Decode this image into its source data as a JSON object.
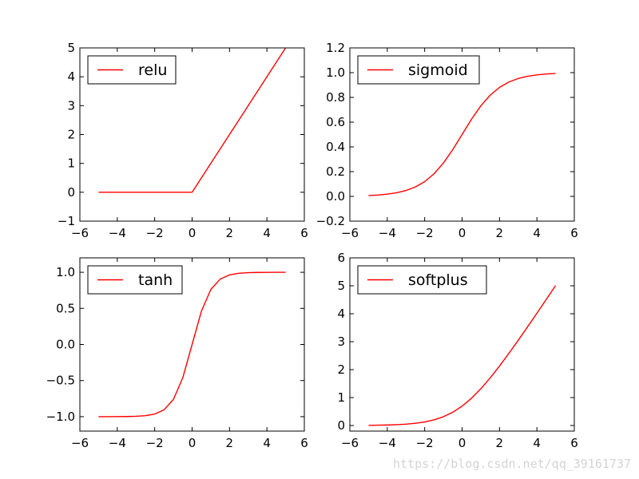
{
  "chart_data": [
    {
      "type": "line",
      "x": [
        -5,
        -4,
        -3,
        -2,
        -1,
        0,
        1,
        2,
        3,
        4,
        5
      ],
      "series": [
        {
          "name": "relu",
          "color": "#ff0000",
          "values": [
            0,
            0,
            0,
            0,
            0,
            0,
            1,
            2,
            3,
            4,
            5
          ]
        }
      ],
      "xlim": [
        -6,
        6
      ],
      "ylim": [
        -1,
        5
      ],
      "xticks": [
        -6,
        -4,
        -2,
        0,
        2,
        4,
        6
      ],
      "xtick_labels": [
        "−6",
        "−4",
        "−2",
        "0",
        "2",
        "4",
        "6"
      ],
      "yticks": [
        -1,
        0,
        1,
        2,
        3,
        4,
        5
      ],
      "ytick_labels": [
        "−1",
        "0",
        "1",
        "2",
        "3",
        "4",
        "5"
      ],
      "legend": "top-left",
      "grid": false
    },
    {
      "type": "line",
      "x": [
        -5,
        -4.5,
        -4,
        -3.5,
        -3,
        -2.5,
        -2,
        -1.5,
        -1,
        -0.5,
        0,
        0.5,
        1,
        1.5,
        2,
        2.5,
        3,
        3.5,
        4,
        4.5,
        5
      ],
      "series": [
        {
          "name": "sigmoid",
          "color": "#ff0000",
          "values": [
            0.0067,
            0.011,
            0.018,
            0.0293,
            0.0474,
            0.0759,
            0.1192,
            0.1824,
            0.2689,
            0.3775,
            0.5,
            0.6225,
            0.7311,
            0.8176,
            0.8808,
            0.9241,
            0.9526,
            0.9707,
            0.982,
            0.989,
            0.9933
          ]
        }
      ],
      "xlim": [
        -6,
        6
      ],
      "ylim": [
        -0.2,
        1.2
      ],
      "xticks": [
        -6,
        -4,
        -2,
        0,
        2,
        4,
        6
      ],
      "xtick_labels": [
        "−6",
        "−4",
        "−2",
        "0",
        "2",
        "4",
        "6"
      ],
      "yticks": [
        -0.2,
        0,
        0.2,
        0.4,
        0.6,
        0.8,
        1.0,
        1.2
      ],
      "ytick_labels": [
        "−0.2",
        "0.0",
        "0.2",
        "0.4",
        "0.6",
        "0.8",
        "1.0",
        "1.2"
      ],
      "legend": "top-left",
      "grid": false
    },
    {
      "type": "line",
      "x": [
        -5,
        -4.5,
        -4,
        -3.5,
        -3,
        -2.5,
        -2,
        -1.5,
        -1,
        -0.5,
        0,
        0.5,
        1,
        1.5,
        2,
        2.5,
        3,
        3.5,
        4,
        4.5,
        5
      ],
      "series": [
        {
          "name": "tanh",
          "color": "#ff0000",
          "values": [
            -0.9999,
            -0.9998,
            -0.9993,
            -0.9982,
            -0.9951,
            -0.9866,
            -0.964,
            -0.9051,
            -0.7616,
            -0.4621,
            0,
            0.4621,
            0.7616,
            0.9051,
            0.964,
            0.9866,
            0.9951,
            0.9982,
            0.9993,
            0.9998,
            0.9999
          ]
        }
      ],
      "xlim": [
        -6,
        6
      ],
      "ylim": [
        -1.2,
        1.2
      ],
      "xticks": [
        -6,
        -4,
        -2,
        0,
        2,
        4,
        6
      ],
      "xtick_labels": [
        "−6",
        "−4",
        "−2",
        "0",
        "2",
        "4",
        "6"
      ],
      "yticks": [
        -1.0,
        -0.5,
        0,
        0.5,
        1.0
      ],
      "ytick_labels": [
        "−1.0",
        "−0.5",
        "0.0",
        "0.5",
        "1.0"
      ],
      "legend": "top-left",
      "grid": false
    },
    {
      "type": "line",
      "x": [
        -5,
        -4.5,
        -4,
        -3.5,
        -3,
        -2.5,
        -2,
        -1.5,
        -1,
        -0.5,
        0,
        0.5,
        1,
        1.5,
        2,
        2.5,
        3,
        3.5,
        4,
        4.5,
        5
      ],
      "series": [
        {
          "name": "softplus",
          "color": "#ff0000",
          "values": [
            0.0067,
            0.0111,
            0.0181,
            0.0298,
            0.0486,
            0.0789,
            0.1269,
            0.2014,
            0.3133,
            0.4741,
            0.6931,
            0.9741,
            1.3133,
            1.7014,
            2.1269,
            2.5789,
            3.0486,
            3.5298,
            4.0181,
            4.5111,
            5.0067
          ]
        }
      ],
      "xlim": [
        -6,
        6
      ],
      "ylim": [
        -0.2,
        6
      ],
      "xticks": [
        -6,
        -4,
        -2,
        0,
        2,
        4,
        6
      ],
      "xtick_labels": [
        "−6",
        "−4",
        "−2",
        "0",
        "2",
        "4",
        "6"
      ],
      "yticks": [
        0,
        1,
        2,
        3,
        4,
        5,
        6
      ],
      "ytick_labels": [
        "0",
        "1",
        "2",
        "3",
        "4",
        "5",
        "6"
      ],
      "legend": "top-left",
      "grid": false
    }
  ],
  "watermark": "https://blog.csdn.net/qq_39161737"
}
